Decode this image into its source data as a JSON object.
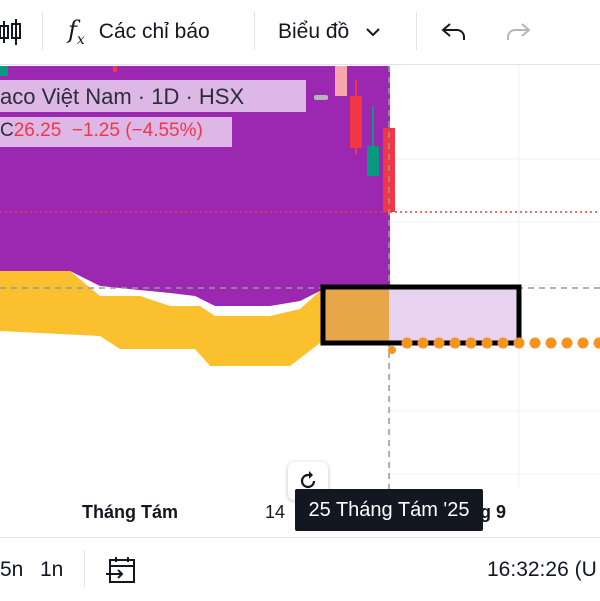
{
  "toolbar": {
    "indicators_label": "Các chỉ báo",
    "chart_type_label": "Biểu đồ"
  },
  "legend": {
    "title": "aco Việt Nam · 1D · HSX",
    "close_prefix": "C",
    "close_value": "26.25",
    "change": "−1.25 (−4.55%)"
  },
  "time_axis": {
    "labels": [
      "Tháng Tám",
      "14",
      "g 9"
    ],
    "crosshair_date": "25 Tháng Tám '25"
  },
  "bottom_bar": {
    "range_5n": "5n",
    "range_1n": "1n",
    "clock": "16:32:26 (U"
  },
  "colors": {
    "purple_fill": "#9c27b0",
    "yellow_fill": "#fbc02d",
    "down_candle": "#f23645",
    "up_candle": "#089981",
    "dots": "#f7941d"
  }
}
